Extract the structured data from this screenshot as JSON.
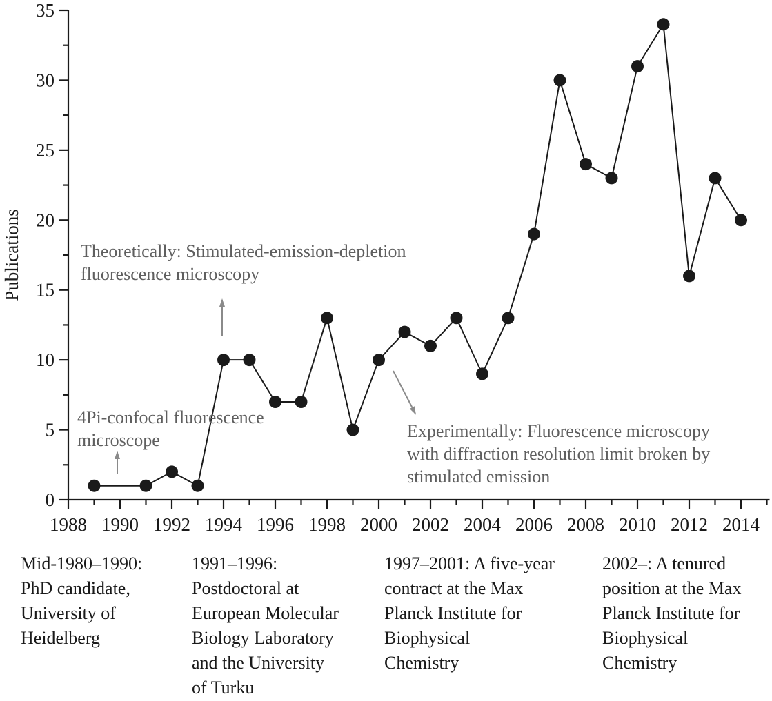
{
  "chart_data": {
    "type": "line",
    "title": "",
    "xlabel": "",
    "ylabel": "Publications",
    "xlim": [
      1988,
      2015
    ],
    "ylim": [
      0,
      35
    ],
    "x_ticks": [
      1988,
      1990,
      1992,
      1994,
      1996,
      1998,
      2000,
      2002,
      2004,
      2006,
      2008,
      2010,
      2012,
      2014
    ],
    "y_ticks": [
      0,
      5,
      10,
      15,
      20,
      25,
      30,
      35
    ],
    "grid": false,
    "marker": "filled-circle",
    "line_color": "#1a1a1a",
    "annotation_color": "#5f5f5f",
    "x": [
      1989,
      1991,
      1992,
      1993,
      1994,
      1995,
      1996,
      1997,
      1998,
      1999,
      2000,
      2001,
      2002,
      2003,
      2004,
      2005,
      2006,
      2007,
      2008,
      2009,
      2010,
      2011,
      2012,
      2013,
      2014
    ],
    "y": [
      1,
      1,
      2,
      1,
      10,
      10,
      7,
      7,
      13,
      5,
      10,
      12,
      11,
      13,
      9,
      13,
      19,
      30,
      24,
      23,
      31,
      34,
      16,
      23,
      20
    ],
    "annotations": [
      {
        "lines": [
          "4Pi-confocal fluorescence",
          "microscope"
        ],
        "year": 1990
      },
      {
        "lines": [
          "Theoretically: Stimulated-emission-depletion",
          "fluorescence microscopy"
        ],
        "year": 1994
      },
      {
        "lines": [
          "Experimentally: Fluorescence microscopy",
          "with diffraction resolution limit broken by",
          "stimulated emission"
        ],
        "year": 2000
      }
    ]
  },
  "periods": [
    {
      "lines": [
        "Mid-1980–1990:",
        "PhD candidate,",
        "University of",
        "Heidelberg"
      ]
    },
    {
      "lines": [
        "1991–1996:",
        "Postdoctoral at",
        "European Molecular",
        "Biology Laboratory",
        "and the University",
        "of Turku"
      ]
    },
    {
      "lines": [
        "1997–2001: A five-year",
        "contract at the Max",
        "Planck Institute for",
        "Biophysical",
        "Chemistry"
      ]
    },
    {
      "lines": [
        "2002–: A tenured",
        "position at the Max",
        "Planck Institute for",
        "Biophysical",
        "Chemistry"
      ]
    }
  ]
}
